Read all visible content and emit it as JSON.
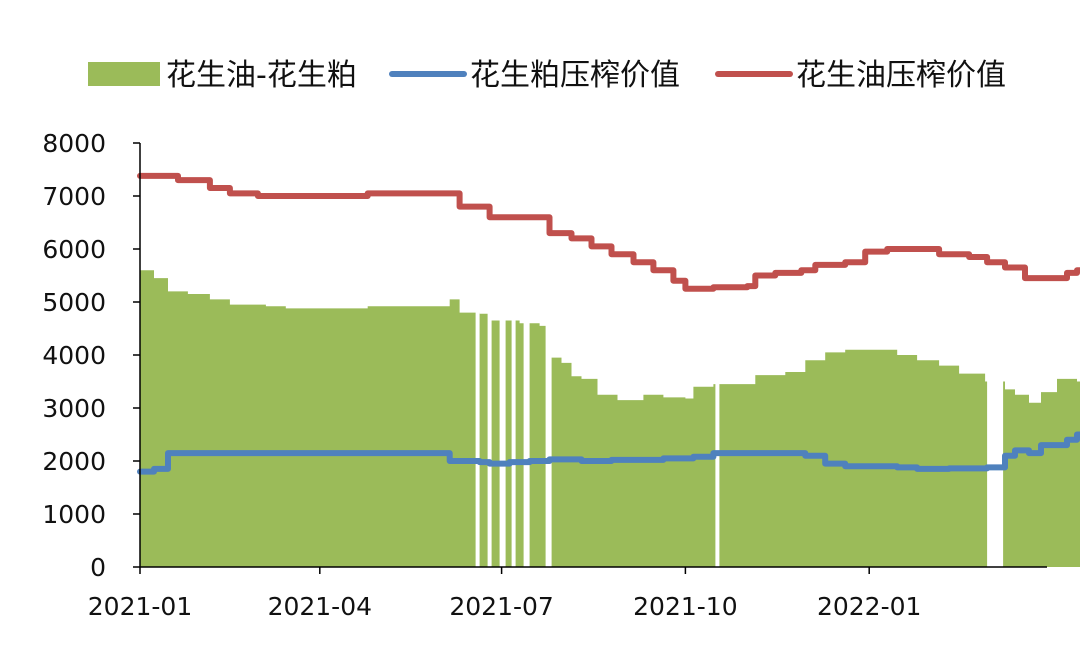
{
  "chart_data": {
    "type": "bar+line",
    "title": "",
    "xlabel": "",
    "ylabel": "",
    "ylim": [
      0,
      8000
    ],
    "yticks": [
      0,
      1000,
      2000,
      3000,
      4000,
      5000,
      6000,
      7000,
      8000
    ],
    "x_tick_labels": [
      "2021-01",
      "2021-04",
      "2021-07",
      "2021-10",
      "2022-01"
    ],
    "xlim": [
      "2021-01-01",
      "2022-03-31"
    ],
    "grid": false,
    "legend_position": "top",
    "legend": [
      {
        "label": "花生油-花生粕",
        "kind": "area",
        "color": "#9bbb59"
      },
      {
        "label": "花生粕压榨价值",
        "kind": "line",
        "color": "#4f81bd"
      },
      {
        "label": "花生油压榨价值",
        "kind": "line",
        "color": "#c0504d"
      }
    ],
    "series": [
      {
        "name": "花生油-花生粕",
        "type": "area",
        "color": "#9bbb59",
        "points": [
          [
            "2021-01-01",
            5600
          ],
          [
            "2021-01-08",
            5450
          ],
          [
            "2021-01-15",
            5200
          ],
          [
            "2021-01-25",
            5150
          ],
          [
            "2021-02-05",
            5050
          ],
          [
            "2021-02-15",
            4950
          ],
          [
            "2021-03-05",
            4920
          ],
          [
            "2021-03-15",
            4880
          ],
          [
            "2021-04-20",
            4880
          ],
          [
            "2021-04-25",
            4920
          ],
          [
            "2021-05-28",
            4920
          ],
          [
            "2021-06-05",
            5050
          ],
          [
            "2021-06-10",
            4800
          ],
          [
            "2021-06-20",
            4780
          ],
          [
            "2021-06-25",
            4650
          ],
          [
            "2021-07-10",
            4600
          ],
          [
            "2021-07-20",
            4550
          ],
          [
            "2021-07-25",
            3950
          ],
          [
            "2021-07-31",
            3850
          ],
          [
            "2021-08-05",
            3600
          ],
          [
            "2021-08-10",
            3550
          ],
          [
            "2021-08-18",
            3250
          ],
          [
            "2021-08-28",
            3150
          ],
          [
            "2021-09-10",
            3250
          ],
          [
            "2021-09-20",
            3200
          ],
          [
            "2021-10-01",
            3180
          ],
          [
            "2021-10-05",
            3400
          ],
          [
            "2021-10-15",
            3450
          ],
          [
            "2021-10-28",
            3450
          ],
          [
            "2021-11-05",
            3620
          ],
          [
            "2021-11-20",
            3680
          ],
          [
            "2021-11-30",
            3900
          ],
          [
            "2021-12-10",
            4050
          ],
          [
            "2021-12-20",
            4100
          ],
          [
            "2022-01-10",
            4100
          ],
          [
            "2022-01-15",
            4000
          ],
          [
            "2022-01-25",
            3900
          ],
          [
            "2022-02-05",
            3800
          ],
          [
            "2022-02-15",
            3650
          ],
          [
            "2022-02-28",
            3500
          ],
          [
            "2022-03-10",
            3350
          ],
          [
            "2022-03-15",
            3250
          ],
          [
            "2022-03-22",
            3100
          ],
          [
            "2022-03-28",
            3300
          ],
          [
            "2022-04-05",
            3550
          ],
          [
            "2022-04-15",
            3500
          ],
          [
            "2022-04-24",
            3500
          ]
        ],
        "gaps": [
          [
            "2021-06-18",
            "2021-06-20"
          ],
          [
            "2021-06-24",
            "2021-06-26"
          ],
          [
            "2021-06-30",
            "2021-07-03"
          ],
          [
            "2021-07-06",
            "2021-07-08"
          ],
          [
            "2021-07-12",
            "2021-07-15"
          ],
          [
            "2021-07-23",
            "2021-07-26"
          ],
          [
            "2021-10-16",
            "2021-10-18"
          ],
          [
            "2022-03-01",
            "2022-03-09"
          ]
        ]
      },
      {
        "name": "花生粕压榨价值",
        "type": "line",
        "color": "#4f81bd",
        "points": [
          [
            "2021-01-01",
            1800
          ],
          [
            "2021-01-08",
            1850
          ],
          [
            "2021-01-15",
            2150
          ],
          [
            "2021-05-28",
            2150
          ],
          [
            "2021-06-05",
            2000
          ],
          [
            "2021-06-20",
            1980
          ],
          [
            "2021-06-25",
            1950
          ],
          [
            "2021-07-05",
            1980
          ],
          [
            "2021-07-15",
            2000
          ],
          [
            "2021-07-25",
            2030
          ],
          [
            "2021-08-10",
            2000
          ],
          [
            "2021-08-25",
            2020
          ],
          [
            "2021-09-20",
            2050
          ],
          [
            "2021-10-05",
            2080
          ],
          [
            "2021-10-15",
            2150
          ],
          [
            "2021-11-15",
            2150
          ],
          [
            "2021-11-30",
            2100
          ],
          [
            "2021-12-10",
            1950
          ],
          [
            "2021-12-20",
            1900
          ],
          [
            "2022-01-15",
            1880
          ],
          [
            "2022-01-25",
            1850
          ],
          [
            "2022-02-10",
            1860
          ],
          [
            "2022-03-01",
            1880
          ],
          [
            "2022-03-10",
            2100
          ],
          [
            "2022-03-15",
            2200
          ],
          [
            "2022-03-22",
            2150
          ],
          [
            "2022-03-28",
            2300
          ],
          [
            "2022-04-10",
            2400
          ],
          [
            "2022-04-15",
            2500
          ],
          [
            "2022-04-24",
            2480
          ]
        ]
      },
      {
        "name": "花生油压榨价值",
        "type": "line",
        "color": "#c0504d",
        "points": [
          [
            "2021-01-01",
            7380
          ],
          [
            "2021-01-20",
            7300
          ],
          [
            "2021-02-05",
            7150
          ],
          [
            "2021-02-15",
            7050
          ],
          [
            "2021-03-01",
            7000
          ],
          [
            "2021-04-20",
            7000
          ],
          [
            "2021-04-25",
            7050
          ],
          [
            "2021-06-05",
            7050
          ],
          [
            "2021-06-10",
            6800
          ],
          [
            "2021-06-25",
            6600
          ],
          [
            "2021-07-20",
            6600
          ],
          [
            "2021-07-25",
            6300
          ],
          [
            "2021-08-05",
            6200
          ],
          [
            "2021-08-15",
            6050
          ],
          [
            "2021-08-25",
            5900
          ],
          [
            "2021-09-05",
            5750
          ],
          [
            "2021-09-15",
            5600
          ],
          [
            "2021-09-25",
            5400
          ],
          [
            "2021-10-01",
            5250
          ],
          [
            "2021-10-15",
            5280
          ],
          [
            "2021-11-01",
            5300
          ],
          [
            "2021-11-05",
            5500
          ],
          [
            "2021-11-15",
            5550
          ],
          [
            "2021-11-28",
            5600
          ],
          [
            "2021-12-05",
            5700
          ],
          [
            "2021-12-20",
            5750
          ],
          [
            "2021-12-30",
            5950
          ],
          [
            "2022-01-10",
            6000
          ],
          [
            "2022-01-25",
            6000
          ],
          [
            "2022-02-05",
            5900
          ],
          [
            "2022-02-20",
            5850
          ],
          [
            "2022-03-01",
            5750
          ],
          [
            "2022-03-10",
            5650
          ],
          [
            "2022-03-20",
            5450
          ],
          [
            "2022-04-05",
            5450
          ],
          [
            "2022-04-10",
            5550
          ],
          [
            "2022-04-15",
            5600
          ],
          [
            "2022-04-18",
            5900
          ],
          [
            "2022-04-22",
            6000
          ],
          [
            "2022-04-24",
            6000
          ]
        ]
      }
    ]
  }
}
